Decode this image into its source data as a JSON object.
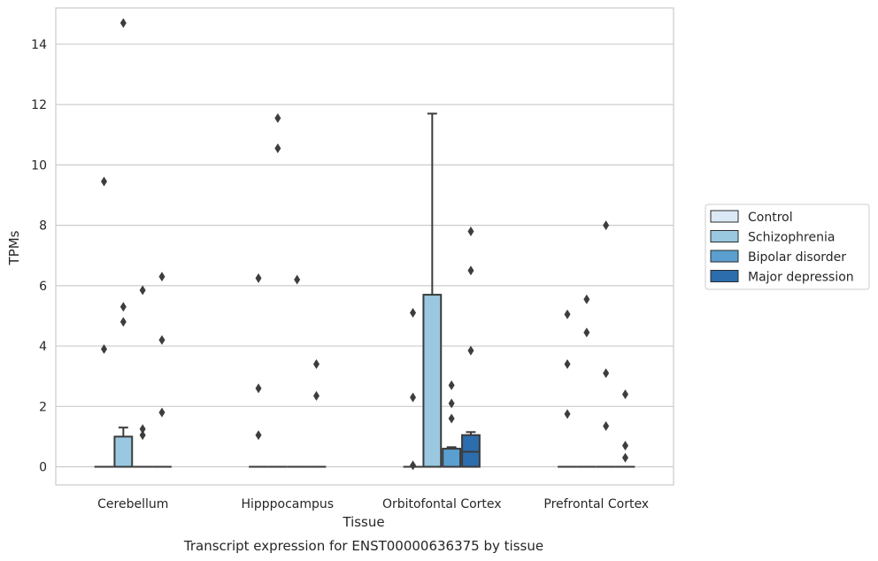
{
  "chart_data": {
    "type": "box",
    "xlabel": "Tissue",
    "ylabel": "TPMs",
    "caption": "Transcript expression for ENST00000636375 by tissue",
    "ylim": [
      -0.6,
      15.2
    ],
    "yticks": [
      0,
      2,
      4,
      6,
      8,
      10,
      12,
      14
    ],
    "grid": true,
    "legend_position": "right",
    "categories": [
      "Cerebellum",
      "Hipppocampus",
      "Orbitofontal Cortex",
      "Prefrontal Cortex"
    ],
    "series": [
      {
        "name": "Control",
        "color": "#dbe9f6",
        "boxes": [
          {
            "q1": 0,
            "median": 0,
            "q3": 0,
            "whisker_low": 0,
            "whisker_high": 0,
            "outliers": [
              3.9,
              9.45
            ]
          },
          {
            "q1": 0,
            "median": 0,
            "q3": 0,
            "whisker_low": 0,
            "whisker_high": 0,
            "outliers": [
              1.05,
              2.6,
              6.25
            ]
          },
          {
            "q1": 0,
            "median": 0,
            "q3": 0,
            "whisker_low": 0,
            "whisker_high": 0,
            "outliers": [
              0.05,
              2.3,
              5.1
            ]
          },
          {
            "q1": 0,
            "median": 0,
            "q3": 0,
            "whisker_low": 0,
            "whisker_high": 0,
            "outliers": [
              1.75,
              3.4,
              5.05
            ]
          }
        ]
      },
      {
        "name": "Schizophrenia",
        "color": "#9ac8e0",
        "boxes": [
          {
            "q1": 0,
            "median": 0,
            "q3": 1.0,
            "whisker_low": 0,
            "whisker_high": 1.3,
            "outliers": [
              4.8,
              5.3,
              14.7
            ]
          },
          {
            "q1": 0,
            "median": 0,
            "q3": 0,
            "whisker_low": 0,
            "whisker_high": 0,
            "outliers": [
              10.55,
              11.55
            ]
          },
          {
            "q1": 0,
            "median": 0,
            "q3": 5.7,
            "whisker_low": 0,
            "whisker_high": 11.7,
            "outliers": []
          },
          {
            "q1": 0,
            "median": 0,
            "q3": 0,
            "whisker_low": 0,
            "whisker_high": 0,
            "outliers": [
              4.45,
              5.55
            ]
          }
        ]
      },
      {
        "name": "Bipolar disorder",
        "color": "#5a9fcf",
        "boxes": [
          {
            "q1": 0,
            "median": 0,
            "q3": 0,
            "whisker_low": 0,
            "whisker_high": 0,
            "outliers": [
              1.05,
              1.25,
              5.85
            ]
          },
          {
            "q1": 0,
            "median": 0,
            "q3": 0,
            "whisker_low": 0,
            "whisker_high": 0,
            "outliers": [
              6.2
            ]
          },
          {
            "q1": 0,
            "median": 0,
            "q3": 0.6,
            "whisker_low": 0,
            "whisker_high": 0.65,
            "outliers": [
              1.6,
              2.1,
              2.7
            ]
          },
          {
            "q1": 0,
            "median": 0,
            "q3": 0,
            "whisker_low": 0,
            "whisker_high": 0,
            "outliers": [
              1.35,
              3.1,
              8.0
            ]
          }
        ]
      },
      {
        "name": "Major depression",
        "color": "#2c6dad",
        "boxes": [
          {
            "q1": 0,
            "median": 0,
            "q3": 0,
            "whisker_low": 0,
            "whisker_high": 0,
            "outliers": [
              1.8,
              4.2,
              6.3
            ]
          },
          {
            "q1": 0,
            "median": 0,
            "q3": 0,
            "whisker_low": 0,
            "whisker_high": 0,
            "outliers": [
              2.35,
              3.4
            ]
          },
          {
            "q1": 0,
            "median": 0.5,
            "q3": 1.05,
            "whisker_low": 0,
            "whisker_high": 1.15,
            "outliers": [
              3.85,
              6.5,
              7.8
            ]
          },
          {
            "q1": 0,
            "median": 0,
            "q3": 0,
            "whisker_low": 0,
            "whisker_high": 0,
            "outliers": [
              0.3,
              0.7,
              2.4
            ]
          }
        ]
      }
    ]
  }
}
